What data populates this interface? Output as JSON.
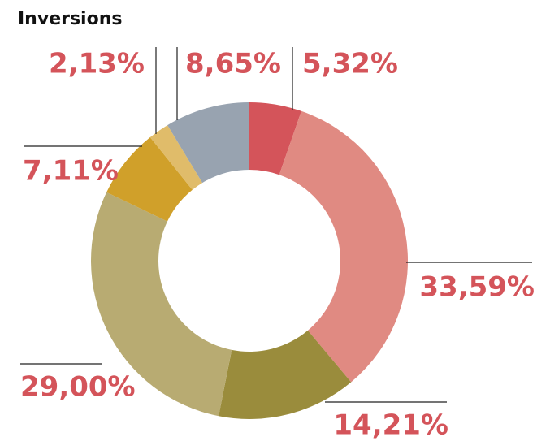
{
  "chart_data": {
    "type": "donut",
    "title": "Inversions",
    "values": [
      5.32,
      33.59,
      14.21,
      29.0,
      7.11,
      2.13,
      8.65
    ],
    "value_labels": [
      "5,32%",
      "33,59%",
      "14,21%",
      "29,00%",
      "7,11%",
      "2,13%",
      "8,65%"
    ],
    "colors": [
      "#d4545a",
      "#e08a82",
      "#9a8c3c",
      "#b8ab72",
      "#d0a02a",
      "#e0bc6a",
      "#98a3b0"
    ]
  }
}
